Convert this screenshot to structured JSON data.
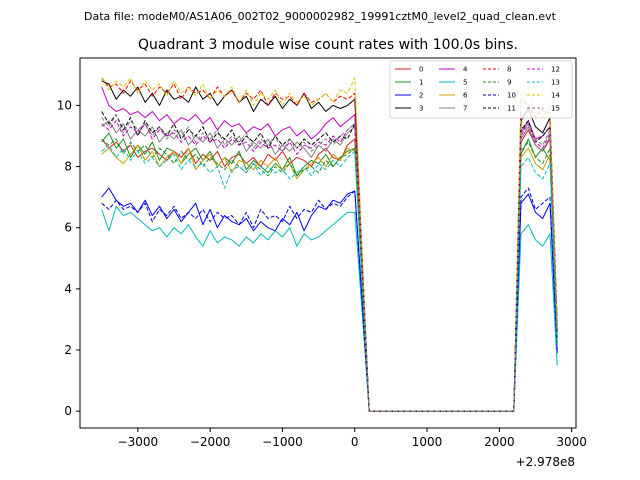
{
  "suptitle": "Data file: modeM0/AS1A06_002T02_9000002982_19991cztM0_level2_quad_clean.evt",
  "chart_data": {
    "type": "line",
    "title": "Quadrant 3 module wise count rates with 100.0s bins.",
    "xlabel": "",
    "ylabel": "",
    "offset_label": "+2.978e8",
    "xlim": [
      -3800,
      3060
    ],
    "ylim": [
      -0.55,
      11.55
    ],
    "xticks": [
      -3000,
      -2000,
      -1000,
      0,
      1000,
      2000,
      3000
    ],
    "xtick_labels": [
      "−3000",
      "−2000",
      "−1000",
      "0",
      "1000",
      "2000",
      "3000"
    ],
    "yticks": [
      0,
      2,
      4,
      6,
      8,
      10
    ],
    "ytick_labels": [
      "0",
      "2",
      "4",
      "6",
      "8",
      "10"
    ],
    "grid": false,
    "legend_position": "top-right",
    "x": [
      -3500,
      -3400,
      -3300,
      -3200,
      -3100,
      -3000,
      -2900,
      -2800,
      -2700,
      -2600,
      -2500,
      -2400,
      -2300,
      -2200,
      -2100,
      -2000,
      -1900,
      -1800,
      -1700,
      -1600,
      -1500,
      -1400,
      -1300,
      -1200,
      -1100,
      -1000,
      -900,
      -800,
      -700,
      -600,
      -500,
      -400,
      -300,
      -200,
      -100,
      0,
      100,
      200,
      300,
      2200,
      2300,
      2400,
      2500,
      2600,
      2700,
      2800
    ],
    "series": [
      {
        "name": "0",
        "color": "#d62020",
        "dash": "solid",
        "values": [
          8.9,
          8.6,
          8.8,
          8.5,
          8.7,
          8.3,
          8.5,
          8.6,
          8.4,
          8.2,
          8.5,
          8.3,
          8.6,
          8.1,
          8.4,
          8.2,
          8.5,
          8.0,
          8.3,
          8.4,
          8.1,
          8.3,
          8.0,
          8.4,
          8.2,
          8.5,
          8.1,
          8.3,
          8.2,
          8.0,
          8.4,
          8.6,
          8.3,
          8.2,
          8.7,
          8.9,
          4.5,
          0.0,
          0.0,
          0.0,
          8.8,
          9.2,
          8.7,
          8.5,
          8.9,
          2.6
        ]
      },
      {
        "name": "1",
        "color": "#1e8f1e",
        "dash": "solid",
        "values": [
          8.8,
          9.1,
          8.6,
          8.9,
          8.3,
          8.7,
          8.4,
          8.8,
          8.2,
          8.6,
          8.5,
          8.1,
          8.4,
          8.6,
          8.2,
          8.5,
          8.0,
          8.3,
          8.1,
          8.5,
          7.9,
          8.2,
          8.0,
          7.8,
          8.1,
          7.9,
          8.3,
          7.7,
          8.0,
          8.2,
          8.1,
          8.4,
          8.0,
          8.3,
          8.5,
          8.6,
          4.4,
          0.0,
          0.0,
          0.0,
          8.4,
          8.9,
          8.3,
          8.6,
          8.2,
          2.4
        ]
      },
      {
        "name": "2",
        "color": "#0000ff",
        "dash": "solid",
        "values": [
          7.0,
          7.3,
          6.9,
          6.7,
          6.8,
          6.5,
          6.9,
          6.4,
          6.7,
          6.3,
          6.6,
          6.2,
          6.5,
          6.8,
          6.1,
          6.6,
          6.0,
          6.4,
          6.2,
          6.1,
          6.3,
          5.9,
          6.2,
          6.0,
          5.9,
          6.3,
          6.1,
          6.5,
          5.9,
          6.4,
          6.7,
          6.6,
          6.9,
          6.8,
          7.1,
          7.2,
          3.7,
          0.0,
          0.0,
          0.0,
          6.8,
          7.1,
          6.5,
          6.3,
          6.8,
          1.9
        ]
      },
      {
        "name": "3",
        "color": "#000000",
        "dash": "solid",
        "values": [
          10.8,
          10.7,
          10.2,
          10.5,
          10.3,
          10.6,
          10.1,
          10.4,
          10.0,
          10.5,
          10.2,
          10.3,
          10.1,
          10.6,
          10.2,
          10.4,
          10.0,
          10.3,
          10.5,
          10.1,
          10.3,
          9.8,
          10.2,
          10.0,
          10.3,
          9.9,
          10.2,
          10.0,
          10.4,
          9.9,
          10.1,
          9.8,
          10.0,
          9.9,
          10.0,
          10.2,
          5.1,
          0.0,
          0.0,
          0.0,
          9.5,
          9.9,
          9.3,
          9.1,
          9.6,
          2.8
        ]
      },
      {
        "name": "4",
        "color": "#c000c0",
        "dash": "solid",
        "values": [
          10.6,
          10.0,
          9.8,
          9.9,
          9.7,
          9.8,
          9.6,
          9.8,
          9.5,
          9.7,
          9.4,
          9.6,
          9.5,
          9.7,
          9.4,
          9.6,
          9.2,
          9.5,
          9.3,
          9.4,
          9.1,
          9.3,
          9.2,
          9.4,
          9.0,
          9.2,
          9.3,
          9.0,
          9.2,
          8.9,
          9.1,
          9.4,
          9.6,
          9.3,
          9.5,
          9.7,
          4.9,
          0.0,
          0.0,
          0.0,
          9.1,
          9.5,
          8.9,
          9.0,
          9.3,
          2.7
        ]
      },
      {
        "name": "5",
        "color": "#00b8b8",
        "dash": "solid",
        "values": [
          6.6,
          5.9,
          6.7,
          6.4,
          6.5,
          6.3,
          6.1,
          5.9,
          6.0,
          5.7,
          6.0,
          5.8,
          6.1,
          5.7,
          5.4,
          5.9,
          5.5,
          5.7,
          5.6,
          5.4,
          5.7,
          5.5,
          5.8,
          5.6,
          5.9,
          5.7,
          6.0,
          5.4,
          5.8,
          5.6,
          5.7,
          5.9,
          6.1,
          6.3,
          6.5,
          6.5,
          3.3,
          0.0,
          0.0,
          0.0,
          5.8,
          6.1,
          5.6,
          5.4,
          5.8,
          1.5
        ]
      },
      {
        "name": "6",
        "color": "#c8a000",
        "dash": "solid",
        "values": [
          8.4,
          8.6,
          8.3,
          8.1,
          8.4,
          8.7,
          8.2,
          8.5,
          8.0,
          8.3,
          8.5,
          8.1,
          8.6,
          7.9,
          8.2,
          8.4,
          8.0,
          8.3,
          7.8,
          8.2,
          8.1,
          7.9,
          8.2,
          8.0,
          8.3,
          7.9,
          8.1,
          7.6,
          7.9,
          8.1,
          8.3,
          8.0,
          8.4,
          8.2,
          8.6,
          8.5,
          4.3,
          0.0,
          0.0,
          0.0,
          8.3,
          8.6,
          8.1,
          7.9,
          8.4,
          2.3
        ]
      },
      {
        "name": "7",
        "color": "#808080",
        "dash": "solid",
        "values": [
          9.3,
          9.5,
          9.1,
          9.4,
          8.9,
          9.2,
          9.0,
          9.3,
          8.8,
          9.1,
          8.9,
          9.2,
          8.7,
          9.0,
          8.8,
          9.1,
          8.6,
          8.9,
          8.7,
          9.0,
          8.5,
          8.8,
          8.6,
          8.9,
          8.4,
          8.7,
          8.5,
          8.8,
          8.6,
          8.3,
          8.7,
          8.5,
          8.9,
          8.7,
          9.1,
          9.3,
          4.7,
          0.0,
          0.0,
          0.0,
          8.9,
          9.3,
          8.7,
          8.5,
          9.0,
          2.5
        ]
      },
      {
        "name": "8",
        "color": "#ff0000",
        "dash": "4,2",
        "values": [
          10.9,
          10.6,
          10.7,
          10.4,
          10.8,
          10.5,
          10.7,
          10.3,
          10.6,
          10.4,
          10.7,
          10.2,
          10.6,
          10.4,
          10.5,
          10.2,
          10.6,
          10.3,
          10.5,
          10.1,
          10.4,
          10.2,
          10.5,
          10.0,
          10.4,
          10.2,
          10.3,
          10.0,
          10.4,
          10.1,
          10.2,
          10.4,
          10.1,
          10.3,
          10.2,
          10.4,
          5.2,
          0.0,
          0.0,
          0.0,
          10.2,
          10.0,
          9.6,
          9.9,
          9.7,
          2.9
        ]
      },
      {
        "name": "9",
        "color": "#228b22",
        "dash": "4,2",
        "values": [
          8.9,
          8.7,
          8.9,
          8.4,
          8.8,
          8.5,
          8.7,
          8.3,
          8.6,
          8.4,
          8.1,
          8.5,
          8.2,
          8.4,
          8.0,
          8.3,
          8.1,
          7.9,
          8.2,
          8.0,
          7.8,
          8.1,
          7.9,
          7.7,
          8.0,
          7.8,
          8.1,
          7.7,
          7.9,
          8.0,
          7.8,
          8.2,
          8.0,
          8.3,
          8.4,
          8.6,
          4.4,
          0.0,
          0.0,
          0.0,
          8.5,
          8.8,
          8.3,
          8.1,
          8.6,
          2.3
        ]
      },
      {
        "name": "10",
        "color": "#0000cc",
        "dash": "4,2",
        "values": [
          6.8,
          6.6,
          6.9,
          6.6,
          6.7,
          6.5,
          6.8,
          6.2,
          6.6,
          6.4,
          6.7,
          6.3,
          6.5,
          6.3,
          6.6,
          6.2,
          6.5,
          6.3,
          6.4,
          6.1,
          6.5,
          6.0,
          6.6,
          6.3,
          6.4,
          6.2,
          6.7,
          6.3,
          6.6,
          6.5,
          6.9,
          6.6,
          6.8,
          6.7,
          7.0,
          7.2,
          3.6,
          0.0,
          0.0,
          0.0,
          7.0,
          7.3,
          6.6,
          6.8,
          7.0,
          2.0
        ]
      },
      {
        "name": "11",
        "color": "#000000",
        "dash": "4,2",
        "values": [
          9.8,
          9.4,
          9.7,
          9.2,
          9.6,
          9.0,
          9.5,
          9.1,
          9.3,
          9.0,
          9.4,
          8.9,
          9.2,
          9.0,
          9.3,
          8.8,
          9.1,
          8.9,
          9.2,
          8.7,
          9.0,
          8.8,
          9.1,
          8.6,
          9.0,
          8.7,
          8.9,
          8.6,
          8.9,
          8.7,
          8.9,
          9.1,
          8.8,
          9.0,
          8.9,
          9.4,
          4.8,
          0.0,
          0.0,
          0.0,
          9.2,
          9.5,
          8.8,
          9.0,
          9.3,
          2.6
        ]
      },
      {
        "name": "12",
        "color": "#cc00cc",
        "dash": "4,2",
        "values": [
          9.4,
          9.2,
          9.5,
          9.0,
          9.3,
          9.1,
          9.4,
          8.9,
          9.2,
          9.0,
          9.1,
          8.8,
          9.0,
          8.7,
          9.0,
          8.8,
          8.9,
          8.6,
          8.9,
          8.7,
          8.8,
          8.5,
          8.8,
          8.6,
          8.7,
          8.5,
          8.8,
          8.4,
          8.7,
          8.6,
          8.8,
          8.7,
          9.0,
          8.8,
          9.2,
          9.4,
          4.8,
          0.0,
          0.0,
          0.0,
          9.0,
          9.4,
          8.8,
          8.6,
          9.1,
          2.6
        ]
      },
      {
        "name": "13",
        "color": "#00c0c0",
        "dash": "4,2",
        "values": [
          8.5,
          8.7,
          8.3,
          8.6,
          8.2,
          8.5,
          8.1,
          8.3,
          8.0,
          8.2,
          8.4,
          7.9,
          8.2,
          8.0,
          8.1,
          7.8,
          8.0,
          7.3,
          7.9,
          8.0,
          7.8,
          8.1,
          7.7,
          8.0,
          7.8,
          7.9,
          7.6,
          7.8,
          8.0,
          7.7,
          8.1,
          7.9,
          8.2,
          8.0,
          8.3,
          8.5,
          4.3,
          0.0,
          0.0,
          0.0,
          8.0,
          8.3,
          7.8,
          7.6,
          8.1,
          2.2
        ]
      },
      {
        "name": "14",
        "color": "#d4c400",
        "dash": "4,2",
        "values": [
          10.9,
          10.5,
          10.8,
          10.6,
          10.9,
          10.4,
          10.8,
          10.5,
          10.7,
          10.3,
          10.8,
          10.4,
          10.6,
          10.3,
          10.7,
          10.2,
          10.5,
          10.3,
          10.6,
          10.1,
          10.5,
          10.0,
          10.4,
          10.2,
          10.5,
          10.0,
          10.4,
          10.1,
          10.3,
          10.0,
          10.2,
          10.4,
          10.1,
          10.5,
          10.4,
          10.9,
          5.3,
          0.0,
          0.0,
          0.0,
          10.2,
          10.5,
          9.8,
          9.6,
          9.9,
          2.8
        ]
      },
      {
        "name": "15",
        "color": "#7f7f7f",
        "dash": "4,2",
        "values": [
          9.6,
          9.3,
          9.7,
          9.1,
          9.5,
          9.2,
          9.4,
          9.0,
          9.3,
          8.9,
          9.2,
          9.0,
          9.3,
          8.8,
          9.1,
          8.9,
          9.2,
          8.7,
          9.0,
          8.8,
          9.1,
          8.6,
          8.9,
          8.7,
          9.0,
          8.5,
          8.9,
          8.6,
          8.8,
          8.5,
          8.7,
          8.9,
          8.7,
          9.0,
          9.2,
          9.4,
          4.8,
          0.0,
          0.0,
          0.0,
          9.1,
          9.4,
          8.9,
          8.7,
          9.2,
          2.6
        ]
      }
    ]
  }
}
